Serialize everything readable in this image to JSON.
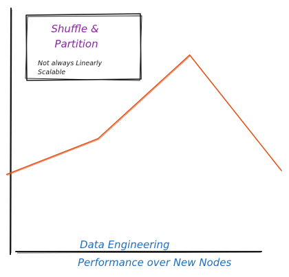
{
  "note": {
    "title_line1": "Shuffle &",
    "title_line2": "Partition",
    "body_line1": "Not always Linearly",
    "body_line2": "Scalable",
    "title_color": "#8e24aa",
    "body_color": "#1a1a1a"
  },
  "caption": {
    "line1": "Data Engineering",
    "line2": "Performance over New Nodes",
    "color": "#1f6fbf"
  },
  "chart_data": {
    "type": "line",
    "series": [
      {
        "color": "#e0551c",
        "points": [
          [
            0,
            40
          ],
          [
            1,
            58
          ],
          [
            2,
            100
          ],
          [
            3,
            42
          ]
        ]
      }
    ],
    "axes_color": "#1a1a1a",
    "grid": false,
    "tick_labels": false
  }
}
